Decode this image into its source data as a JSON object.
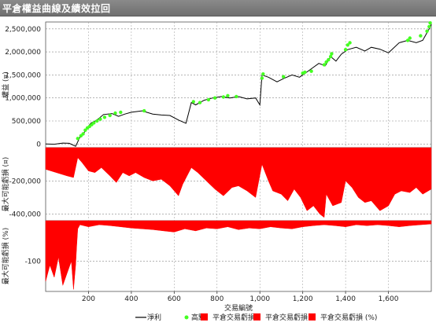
{
  "window": {
    "title": "平倉權益曲線及績效拉回"
  },
  "chart_data": [
    {
      "type": "line",
      "panel": "top",
      "ylabel": "權益 (¤)",
      "ylim": [
        -80000,
        2650000
      ],
      "xlim": [
        0,
        1800
      ],
      "yticks": [
        {
          "value": 0,
          "label": "0"
        },
        {
          "value": 500000,
          "label": "500,000"
        },
        {
          "value": 1000000,
          "label": "1,000,000"
        },
        {
          "value": 1500000,
          "label": "1,500,000"
        },
        {
          "value": 2000000,
          "label": "2,000,000"
        },
        {
          "value": 2500000,
          "label": "2,500,000"
        }
      ],
      "grid": true,
      "series": [
        {
          "name": "淨利",
          "color": "#000000",
          "x": [
            0,
            40,
            80,
            110,
            140,
            160,
            185,
            210,
            240,
            270,
            310,
            340,
            370,
            400,
            450,
            500,
            540,
            580,
            620,
            655,
            680,
            700,
            740,
            780,
            820,
            860,
            900,
            940,
            980,
            1000,
            1010,
            1040,
            1080,
            1110,
            1150,
            1185,
            1215,
            1245,
            1275,
            1305,
            1330,
            1355,
            1380,
            1410,
            1450,
            1490,
            1520,
            1560,
            1600,
            1650,
            1690,
            1730,
            1760,
            1790,
            1800
          ],
          "values": [
            0,
            -5000,
            20000,
            15000,
            -50000,
            150000,
            280000,
            450000,
            520000,
            640000,
            660000,
            600000,
            650000,
            690000,
            720000,
            650000,
            630000,
            620000,
            520000,
            450000,
            900000,
            850000,
            950000,
            1000000,
            1030000,
            1000000,
            1030000,
            980000,
            1000000,
            850000,
            1500000,
            1450000,
            1350000,
            1420000,
            1500000,
            1450000,
            1550000,
            1650000,
            1750000,
            1700000,
            1900000,
            1800000,
            1950000,
            2050000,
            2100000,
            2020000,
            2100000,
            2060000,
            1980000,
            2200000,
            2250000,
            2200000,
            2250000,
            2500000,
            2600000
          ]
        },
        {
          "name": "高點",
          "color": "#44ff22",
          "marker": "dot",
          "x": [
            150,
            165,
            175,
            185,
            195,
            205,
            215,
            225,
            240,
            255,
            275,
            300,
            325,
            350,
            460,
            690,
            720,
            760,
            790,
            830,
            850,
            890,
            1010,
            1015,
            1110,
            1200,
            1210,
            1240,
            1300,
            1310,
            1320,
            1330,
            1335,
            1400,
            1410,
            1420,
            1690,
            1700,
            1750,
            1780,
            1790,
            1795
          ],
          "values": [
            120000,
            180000,
            220000,
            300000,
            350000,
            380000,
            420000,
            460000,
            500000,
            540000,
            580000,
            620000,
            670000,
            690000,
            720000,
            920000,
            900000,
            960000,
            1000000,
            1020000,
            1050000,
            1030000,
            1430000,
            1520000,
            1460000,
            1540000,
            1560000,
            1580000,
            1720000,
            1780000,
            1830000,
            1900000,
            1960000,
            2050000,
            2150000,
            2200000,
            2250000,
            2300000,
            2350000,
            2450000,
            2550000,
            2630000
          ]
        }
      ]
    },
    {
      "type": "area",
      "panel": "middle",
      "ylabel": "最大可能虧損 (¤)",
      "ylim": [
        -440000,
        0
      ],
      "xlim": [
        0,
        1800
      ],
      "yticks": [
        {
          "value": -200000,
          "label": "-200,000"
        },
        {
          "value": -400000,
          "label": "-400,000"
        }
      ],
      "grid": true,
      "series": [
        {
          "name": "平倉交易虧損",
          "color": "#ff0000",
          "x": [
            0,
            50,
            100,
            130,
            150,
            170,
            200,
            230,
            260,
            300,
            330,
            360,
            390,
            420,
            460,
            500,
            540,
            580,
            620,
            640,
            680,
            710,
            750,
            790,
            830,
            870,
            900,
            940,
            980,
            1010,
            1040,
            1060,
            1100,
            1130,
            1160,
            1190,
            1220,
            1250,
            1280,
            1300,
            1310,
            1340,
            1380,
            1400,
            1430,
            1460,
            1490,
            1520,
            1560,
            1600,
            1630,
            1660,
            1700,
            1730,
            1760,
            1800
          ],
          "values": [
            -130000,
            -150000,
            -170000,
            -180000,
            -60000,
            -90000,
            -140000,
            -150000,
            -120000,
            -170000,
            -210000,
            -150000,
            -170000,
            -150000,
            -180000,
            -200000,
            -190000,
            -230000,
            -290000,
            -220000,
            -120000,
            -150000,
            -200000,
            -250000,
            -290000,
            -240000,
            -230000,
            -260000,
            -300000,
            -100000,
            -200000,
            -260000,
            -280000,
            -320000,
            -250000,
            -300000,
            -380000,
            -350000,
            -400000,
            -420000,
            -280000,
            -350000,
            -330000,
            -200000,
            -240000,
            -300000,
            -330000,
            -320000,
            -380000,
            -350000,
            -280000,
            -260000,
            -270000,
            -240000,
            -280000,
            -250000
          ]
        }
      ]
    },
    {
      "type": "area",
      "panel": "bottom",
      "ylabel": "最大可能虧損 (%)",
      "ylim": [
        -175,
        0
      ],
      "xlim": [
        0,
        1800
      ],
      "yticks": [
        {
          "value": -100,
          "label": "-100"
        }
      ],
      "xticks": [
        200,
        400,
        600,
        800,
        1000,
        1200,
        1400,
        1600
      ],
      "xtick_labels": [
        "200",
        "400",
        "600",
        "800",
        "1,000",
        "1,200",
        "1,400",
        "1,600"
      ],
      "xlabel": "交易編號",
      "grid": true,
      "series": [
        {
          "name": "平倉交易虧損 (%)",
          "color": "#ff0000",
          "x": [
            0,
            20,
            40,
            60,
            80,
            100,
            120,
            130,
            140,
            145,
            150,
            160,
            200,
            250,
            300,
            350,
            400,
            450,
            500,
            550,
            600,
            650,
            700,
            750,
            800,
            850,
            900,
            950,
            1000,
            1050,
            1100,
            1150,
            1200,
            1250,
            1300,
            1350,
            1400,
            1450,
            1500,
            1550,
            1600,
            1650,
            1700,
            1750,
            1800
          ],
          "values": [
            -150,
            -110,
            -140,
            -90,
            -160,
            -130,
            -100,
            -170,
            -110,
            -60,
            -20,
            -10,
            -15,
            -10,
            -12,
            -15,
            -18,
            -20,
            -22,
            -25,
            -28,
            -20,
            -25,
            -18,
            -20,
            -15,
            -22,
            -18,
            -20,
            -15,
            -18,
            -20,
            -15,
            -12,
            -10,
            -12,
            -15,
            -10,
            -12,
            -10,
            -12,
            -15,
            -12,
            -10,
            -8
          ]
        }
      ]
    }
  ],
  "legend": {
    "placement": "bottom",
    "items": [
      {
        "label": "淨利",
        "kind": "line",
        "color": "#000000"
      },
      {
        "label": "高點",
        "kind": "dot",
        "color": "#44ff22"
      },
      {
        "label": "平倉交易虧損",
        "kind": "box",
        "color": "#ff0000"
      },
      {
        "label": "平倉交易虧損",
        "kind": "box",
        "color": "#ff0000"
      },
      {
        "label": "平倉交易虧損 (%)",
        "kind": "box",
        "color": "#ff0000"
      }
    ]
  }
}
